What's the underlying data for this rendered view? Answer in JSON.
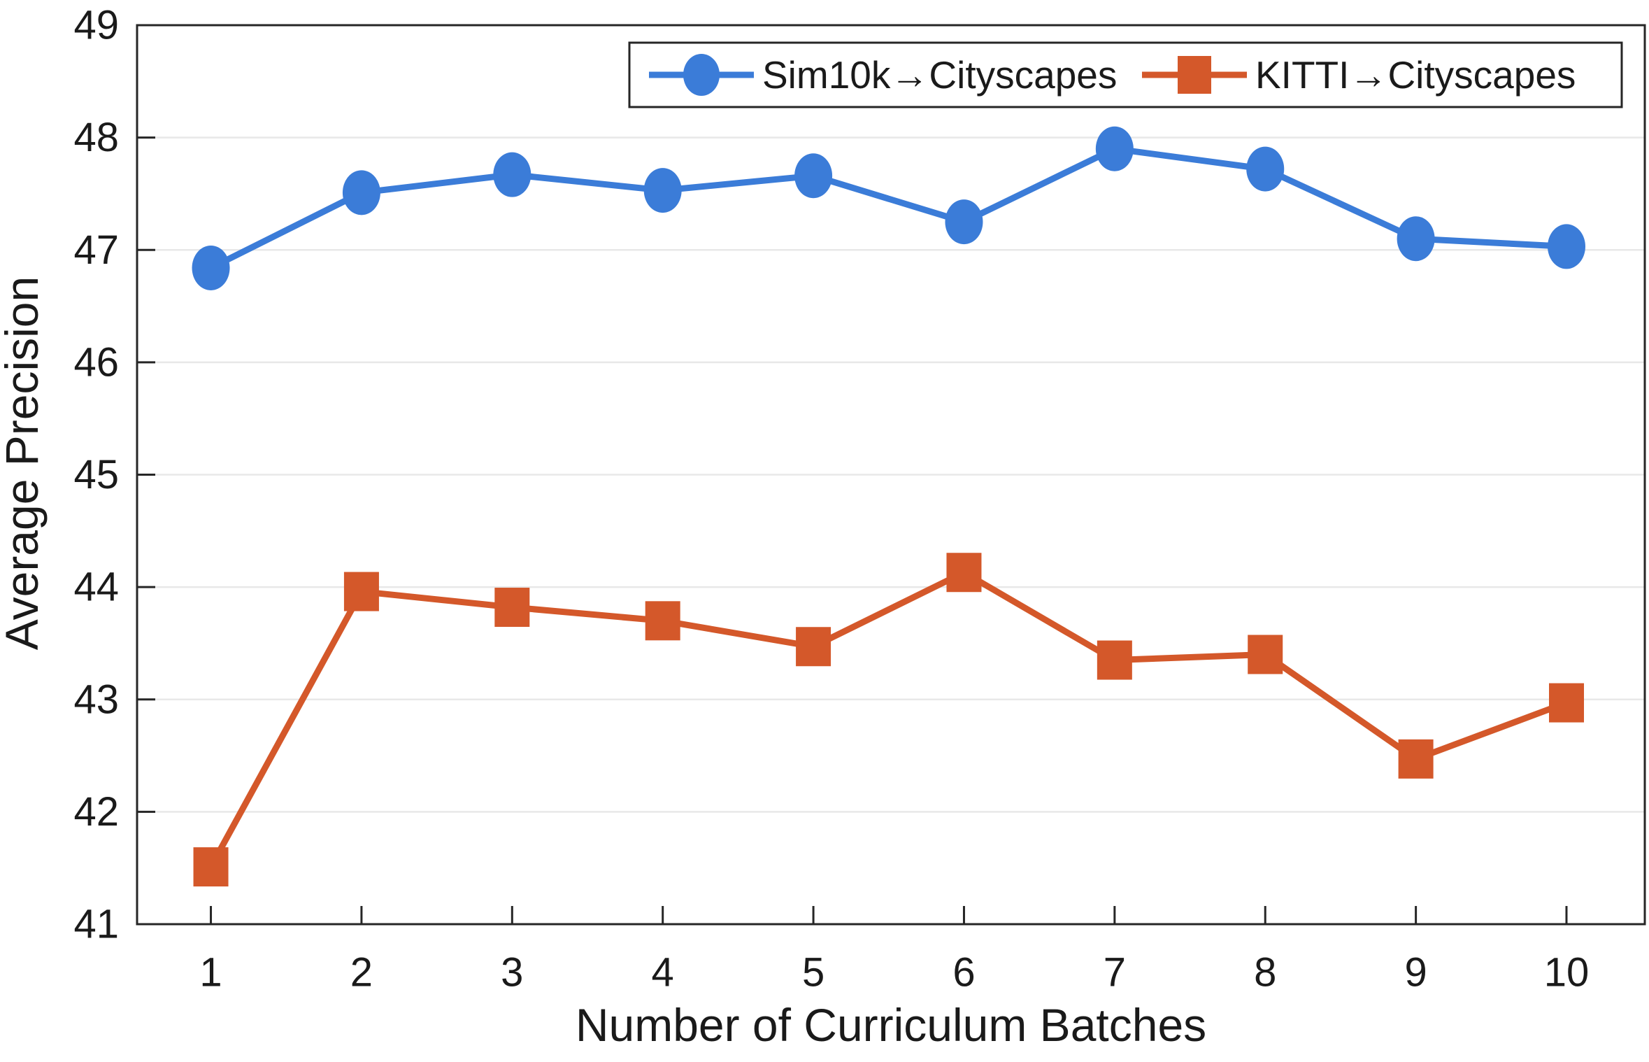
{
  "figure": {
    "background": "#ffffff"
  },
  "chart_data": {
    "type": "line",
    "title": "",
    "xlabel": "Number of Curriculum Batches",
    "ylabel": "Average Precision",
    "x": [
      1,
      2,
      3,
      4,
      5,
      6,
      7,
      8,
      9,
      10
    ],
    "series": [
      {
        "name": "Sim10k→Cityscapes",
        "marker": "circle",
        "color": "#3b7cd8",
        "values": [
          46.84,
          47.51,
          47.67,
          47.53,
          47.66,
          47.25,
          47.9,
          47.72,
          47.1,
          47.03
        ]
      },
      {
        "name": "KITTI→Cityscapes",
        "marker": "square",
        "color": "#d4582a",
        "values": [
          41.51,
          43.96,
          43.82,
          43.7,
          43.47,
          44.13,
          43.35,
          43.4,
          42.47,
          42.97
        ]
      }
    ],
    "xlim": [
      0.51,
      10.52
    ],
    "ylim": [
      41,
      49
    ],
    "xticks": [
      1,
      2,
      3,
      4,
      5,
      6,
      7,
      8,
      9,
      10
    ],
    "yticks": [
      41,
      42,
      43,
      44,
      45,
      46,
      47,
      48,
      49
    ],
    "grid": "horizontal",
    "legend_position": "top-inside",
    "colors": {
      "axis": "#262626",
      "grid": "#e8e8e8",
      "text": "#1a1a1a",
      "legend_border": "#262626",
      "legend_background": "#ffffff"
    }
  }
}
